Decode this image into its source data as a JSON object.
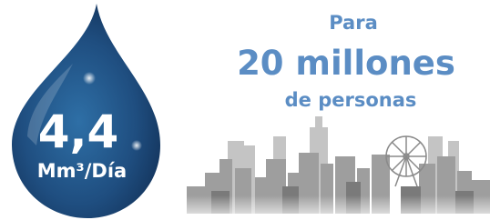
{
  "drop": {
    "value": "4,4",
    "unit": "Mm³/Día"
  },
  "headline": {
    "line1": "Para",
    "line2": "20 millones",
    "line3": "de personas"
  }
}
